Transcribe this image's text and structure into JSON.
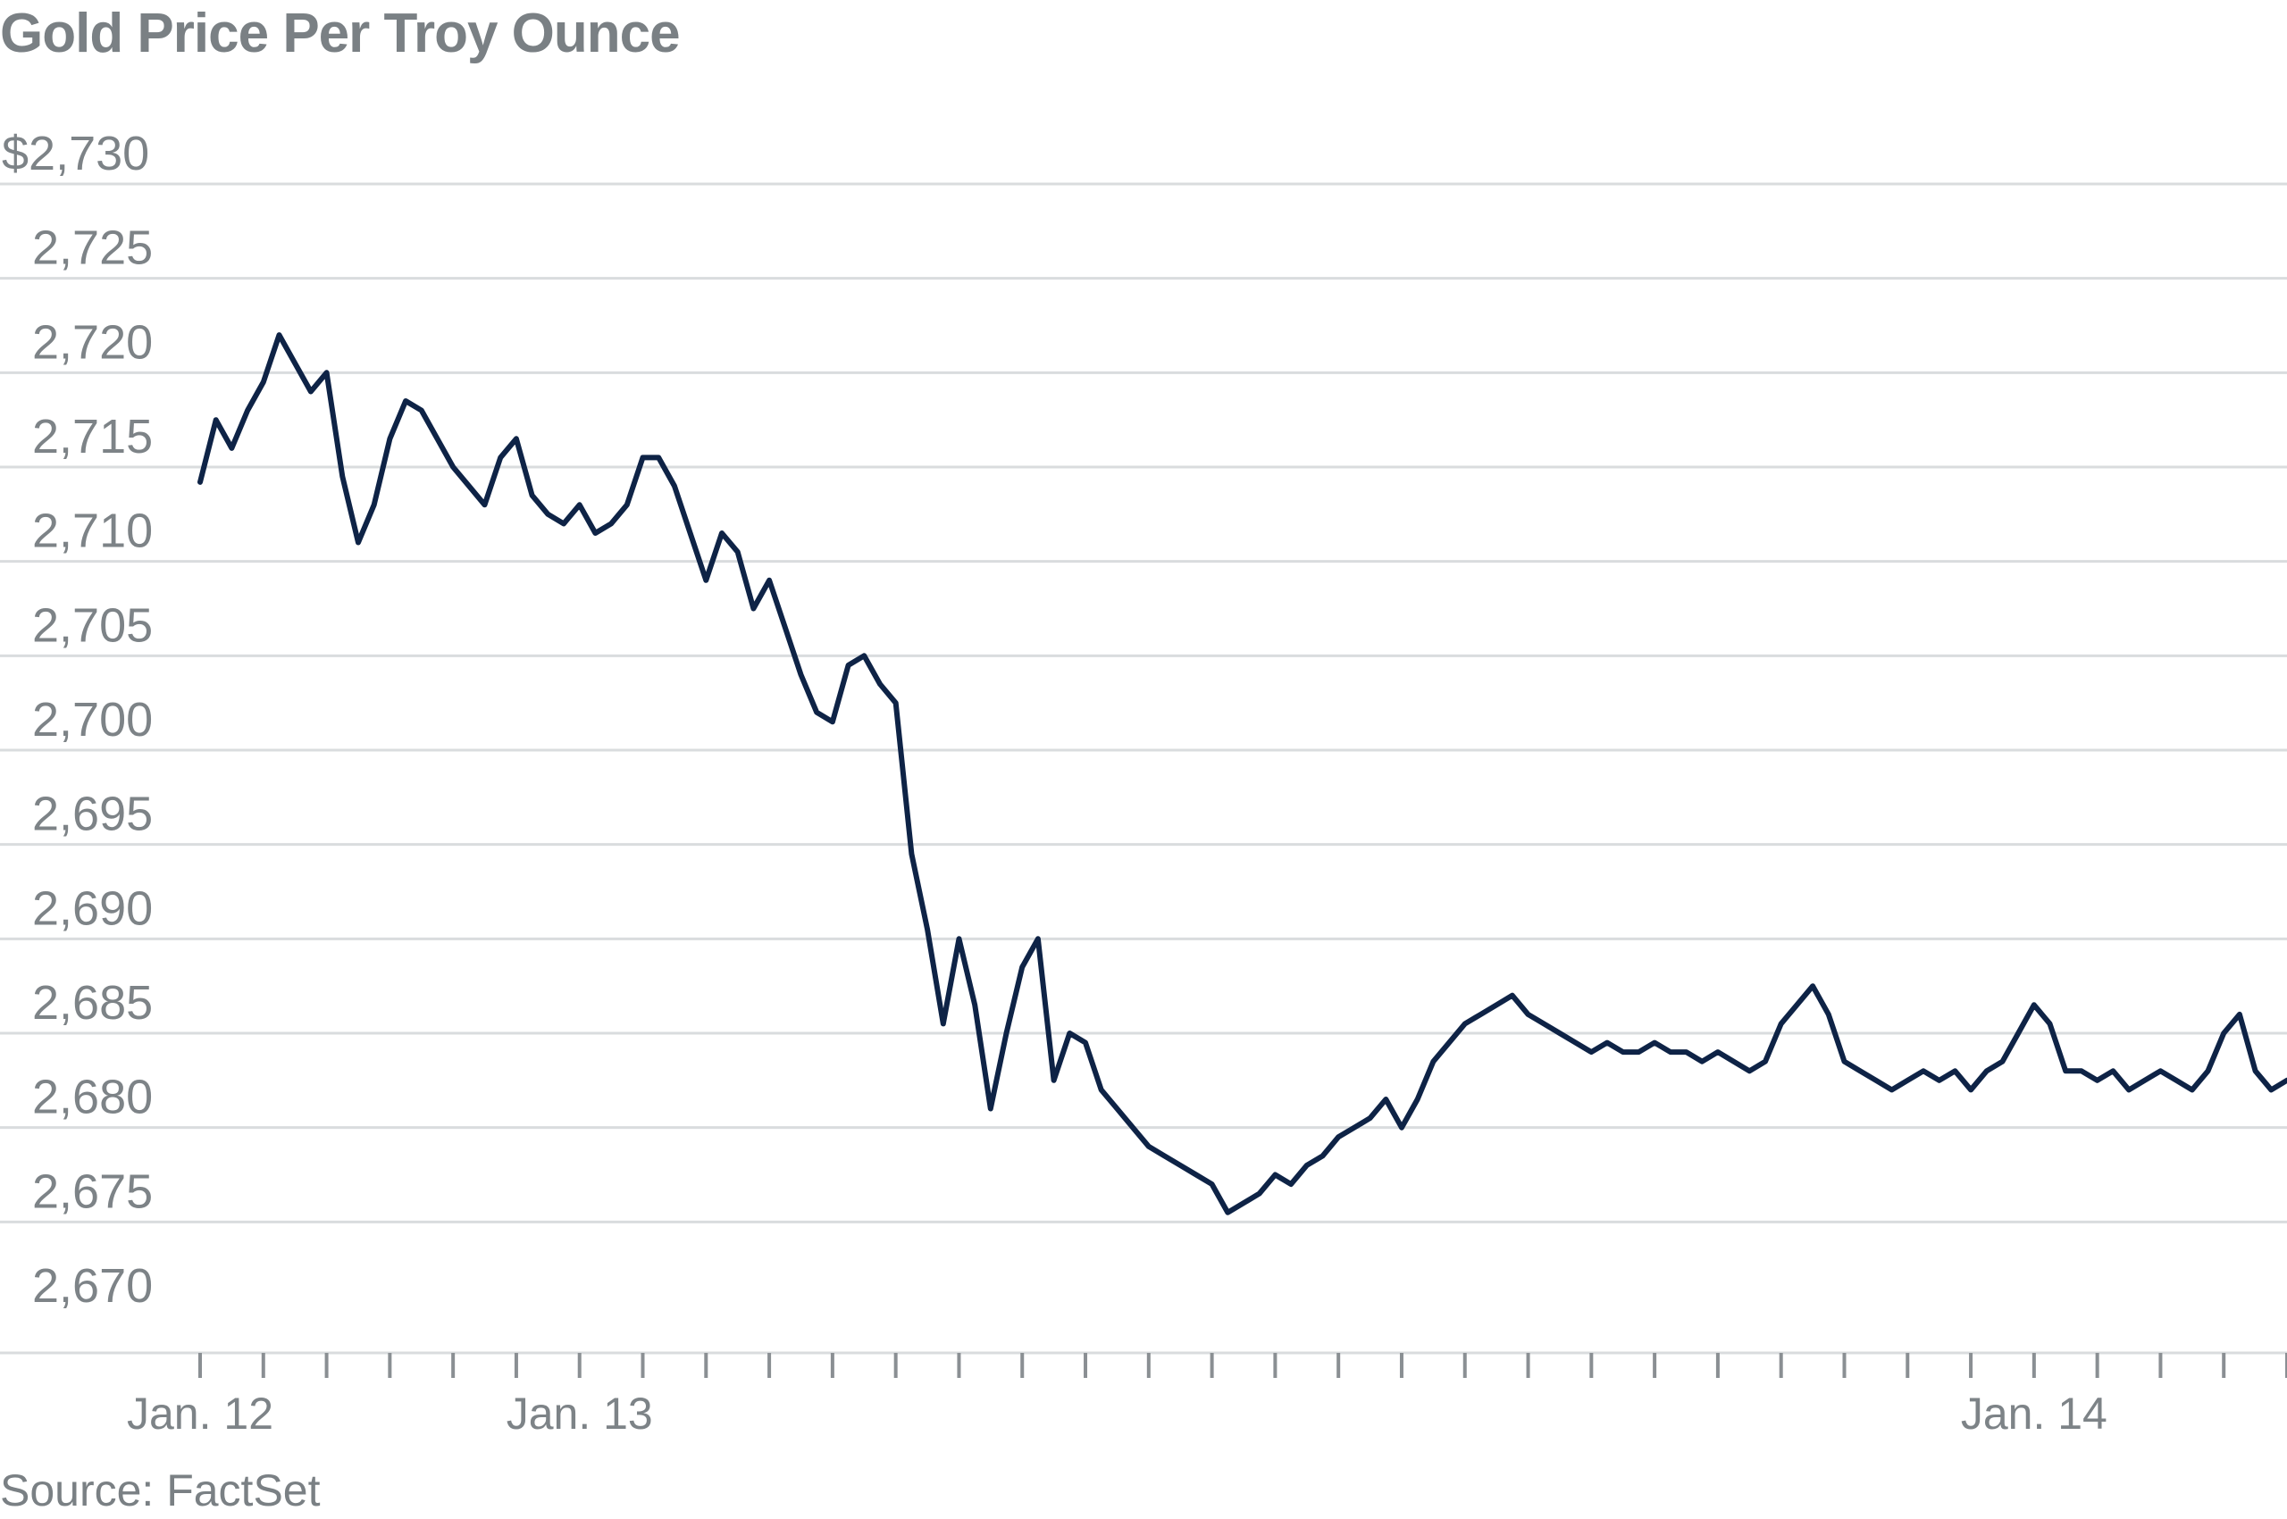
{
  "chart_data": {
    "type": "line",
    "title": "Gold Price Per Troy Ounce",
    "source": "Source: FactSet",
    "xlabel": "",
    "ylabel": "",
    "ylim": [
      2670,
      2730
    ],
    "yticks": [
      2730,
      2725,
      2720,
      2715,
      2710,
      2705,
      2700,
      2695,
      2690,
      2685,
      2680,
      2675,
      2670
    ],
    "ytick_labels": [
      "$2,730",
      "2,725",
      "2,720",
      "2,715",
      "2,710",
      "2,705",
      "2,700",
      "2,695",
      "2,690",
      "2,685",
      "2,680",
      "2,675",
      "2,670"
    ],
    "x_labels": [
      {
        "label": "Jan. 12",
        "hour": 0
      },
      {
        "label": "Jan. 13",
        "hour": 24
      },
      {
        "label": "Jan. 14",
        "hour": 116
      }
    ],
    "x_range_hours": [
      0,
      132
    ],
    "grid": true,
    "line_color": "#0e2346",
    "series": [
      {
        "x": [
          0,
          1,
          2,
          3,
          4,
          5,
          6,
          7,
          8,
          9,
          10,
          11,
          12,
          13,
          14,
          15,
          16,
          17,
          18,
          19,
          20,
          21,
          22,
          23,
          24,
          25,
          26,
          27,
          28,
          29,
          30,
          31,
          32,
          33,
          34,
          35,
          36,
          37,
          38,
          39,
          40,
          41,
          42,
          43,
          44,
          45,
          46,
          47,
          48,
          49,
          50,
          51,
          52,
          53,
          54,
          55,
          56,
          57,
          58,
          59,
          60,
          61,
          62,
          63,
          64,
          65,
          66,
          67,
          68,
          69,
          70,
          71,
          72,
          73,
          74,
          75,
          76,
          77,
          78,
          79,
          80,
          81,
          82,
          83,
          84,
          85,
          86,
          87,
          88,
          89,
          90,
          91,
          92,
          93,
          94,
          95,
          96,
          97,
          98,
          99,
          100,
          101,
          102,
          103,
          104,
          105,
          106,
          107,
          108,
          109,
          110,
          111,
          112,
          113,
          114,
          115,
          116,
          117,
          118,
          119,
          120,
          121,
          122,
          123,
          124,
          125,
          126,
          127,
          128,
          129,
          130,
          131,
          132
        ],
        "values": [
          2714.2,
          2717.5,
          2716.0,
          2718.0,
          2719.5,
          2722.0,
          2720.5,
          2719.0,
          2720.0,
          2714.5,
          2711.0,
          2713.0,
          2716.5,
          2718.5,
          2718.0,
          2716.5,
          2715.0,
          2714.0,
          2713.0,
          2715.5,
          2716.5,
          2713.5,
          2712.5,
          2712.0,
          2713.0,
          2711.5,
          2712.0,
          2713.0,
          2715.5,
          2715.5,
          2714.0,
          2711.5,
          2709.0,
          2711.5,
          2710.5,
          2707.5,
          2709.0,
          2706.5,
          2704.0,
          2702.0,
          2701.5,
          2704.5,
          2705.0,
          2703.5,
          2702.5,
          2694.5,
          2690.5,
          2685.5,
          2690.0,
          2686.5,
          2681.0,
          2685.0,
          2688.5,
          2690.0,
          2682.5,
          2685.0,
          2684.5,
          2682.0,
          2681.0,
          2680.0,
          2679.0,
          2678.5,
          2678.0,
          2677.5,
          2677.0,
          2675.5,
          2676.0,
          2676.5,
          2677.5,
          2677.0,
          2678.0,
          2678.5,
          2679.5,
          2680.0,
          2680.5,
          2681.5,
          2680.0,
          2681.5,
          2683.5,
          2684.5,
          2685.5,
          2686.0,
          2686.5,
          2687.0,
          2686.0,
          2685.5,
          2685.0,
          2684.5,
          2684.0,
          2684.5,
          2684.0,
          2684.0,
          2684.5,
          2684.0,
          2684.0,
          2683.5,
          2684.0,
          2683.5,
          2683.0,
          2683.5,
          2685.5,
          2686.5,
          2687.5,
          2686.0,
          2683.5,
          2683.0,
          2682.5,
          2682.0,
          2682.5,
          2683.0,
          2682.5,
          2683.0,
          2682.0,
          2683.0,
          2683.5,
          2685.0,
          2686.5,
          2685.5,
          2683.0,
          2683.0,
          2682.5,
          2683.0,
          2682.0,
          2682.5,
          2683.0,
          2682.5,
          2682.0,
          2683.0,
          2685.0,
          2686.0,
          2683.0,
          2682.0,
          2682.5
        ]
      }
    ]
  }
}
